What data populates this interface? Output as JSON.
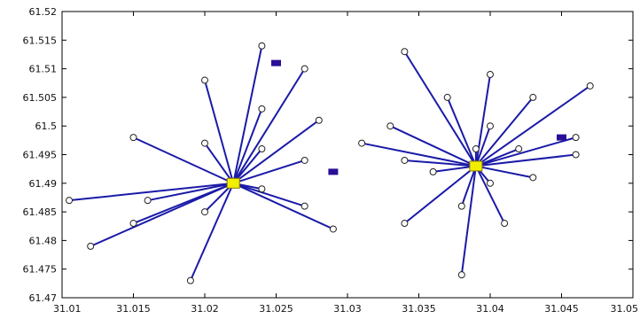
{
  "chart_data": {
    "type": "scatter",
    "title": "",
    "xlabel": "",
    "ylabel": "",
    "xlim": [
      31.01,
      31.05
    ],
    "ylim": [
      61.47,
      61.52
    ],
    "grid": false,
    "x_ticks": [
      "31.01",
      "31.015",
      "31.02",
      "31.025",
      "31.03",
      "31.035",
      "31.04",
      "31.045",
      "31.05"
    ],
    "y_ticks": [
      "61.52",
      "61.515",
      "61.51",
      "61.505",
      "61.5",
      "61.495",
      "61.49",
      "61.485",
      "61.48",
      "61.475",
      "61.47"
    ],
    "clusters": [
      {
        "hub": [
          31.022,
          61.49
        ],
        "nodes": [
          [
            31.0105,
            61.487
          ],
          [
            31.012,
            61.479
          ],
          [
            31.015,
            61.483
          ],
          [
            31.016,
            61.487
          ],
          [
            31.015,
            61.498
          ],
          [
            31.019,
            61.473
          ],
          [
            31.02,
            61.485
          ],
          [
            31.02,
            61.497
          ],
          [
            31.02,
            61.508
          ],
          [
            31.024,
            61.514
          ],
          [
            31.024,
            61.503
          ],
          [
            31.024,
            61.496
          ],
          [
            31.024,
            61.489
          ],
          [
            31.027,
            61.51
          ],
          [
            31.027,
            61.494
          ],
          [
            31.027,
            61.486
          ],
          [
            31.028,
            61.501
          ],
          [
            31.029,
            61.482
          ]
        ]
      },
      {
        "hub": [
          31.039,
          61.493
        ],
        "nodes": [
          [
            31.031,
            61.497
          ],
          [
            31.033,
            61.5
          ],
          [
            31.034,
            61.513
          ],
          [
            31.034,
            61.494
          ],
          [
            31.034,
            61.483
          ],
          [
            31.036,
            61.492
          ],
          [
            31.037,
            61.505
          ],
          [
            31.038,
            61.474
          ],
          [
            31.038,
            61.486
          ],
          [
            31.039,
            61.496
          ],
          [
            31.04,
            61.509
          ],
          [
            31.04,
            61.5
          ],
          [
            31.04,
            61.49
          ],
          [
            31.041,
            61.483
          ],
          [
            31.042,
            61.496
          ],
          [
            31.043,
            61.505
          ],
          [
            31.043,
            61.491
          ],
          [
            31.046,
            61.498
          ],
          [
            31.046,
            61.495
          ],
          [
            31.047,
            61.507
          ]
        ]
      }
    ],
    "markers": [
      [
        31.025,
        61.511
      ],
      [
        31.029,
        61.492
      ],
      [
        31.045,
        61.498
      ]
    ],
    "colors": {
      "link": "#1a1aa8",
      "hub": "#f2ee00",
      "marker": "#2a0f96",
      "station": "#ffffff"
    }
  }
}
